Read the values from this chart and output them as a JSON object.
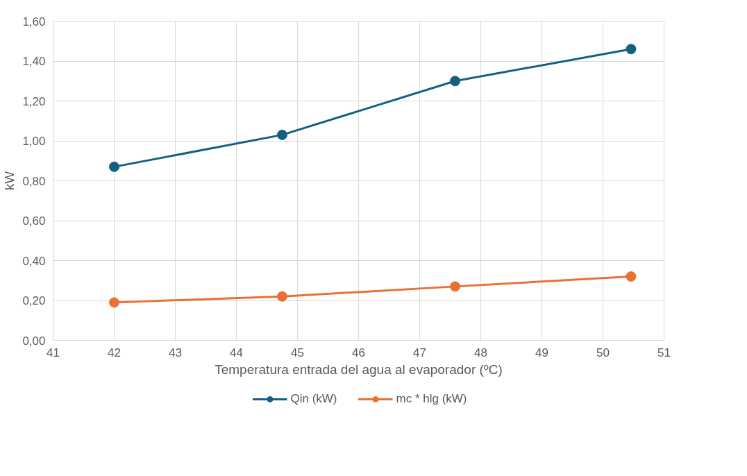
{
  "chart_data": {
    "type": "line",
    "xlabel": "Temperatura entrada del agua al evaporador (ºC)",
    "ylabel": "kW",
    "x": [
      42.0,
      44.75,
      47.58,
      50.46
    ],
    "series": [
      {
        "name": "Qin (kW)",
        "color": "#156082",
        "values": [
          0.87,
          1.03,
          1.3,
          1.46
        ]
      },
      {
        "name": "mc * hlg (kW)",
        "color": "#e97132",
        "values": [
          0.19,
          0.22,
          0.27,
          0.32
        ]
      }
    ],
    "xlim": [
      41,
      51
    ],
    "xticks": [
      41,
      42,
      43,
      44,
      45,
      46,
      47,
      48,
      49,
      50,
      51
    ],
    "ylim": [
      0,
      1.6
    ],
    "yticks": [
      {
        "value": 0,
        "label": "0,00"
      },
      {
        "value": 0.2,
        "label": "0,20"
      },
      {
        "value": 0.4,
        "label": "0,40"
      },
      {
        "value": 0.6,
        "label": "0,60"
      },
      {
        "value": 0.8,
        "label": "0,80"
      },
      {
        "value": 1.0,
        "label": "1,00"
      },
      {
        "value": 1.2,
        "label": "1,20"
      },
      {
        "value": 1.4,
        "label": "1,40"
      },
      {
        "value": 1.6,
        "label": "1,60"
      }
    ],
    "grid": true,
    "legend": "bottom",
    "marker": "circle",
    "line_style": "solid"
  }
}
